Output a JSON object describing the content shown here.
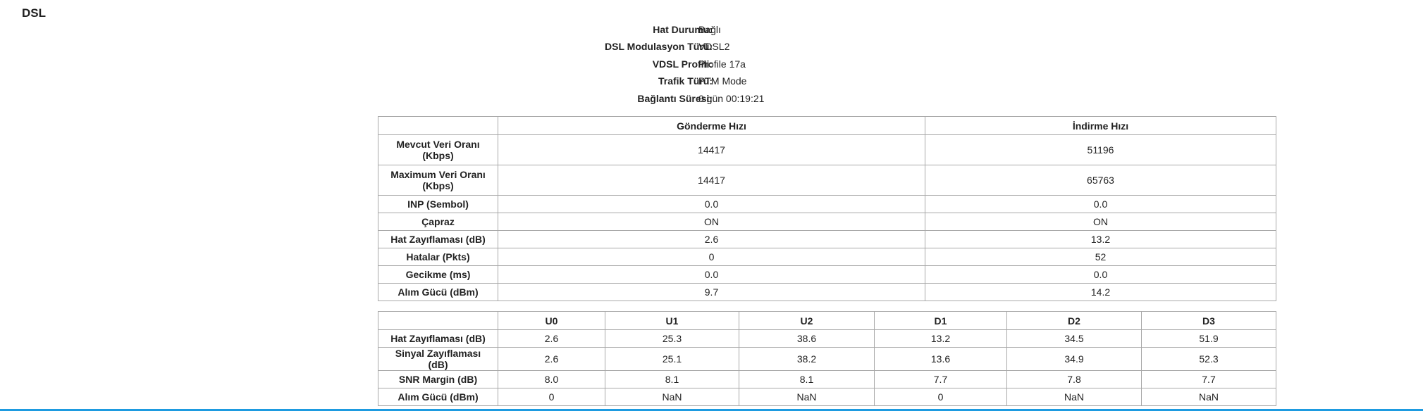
{
  "title": "DSL",
  "status": [
    {
      "label": "Hat Durumu:",
      "value": "Bağlı"
    },
    {
      "label": "DSL Modulasyon Türü:",
      "value": "VDSL2"
    },
    {
      "label": "VDSL Profili:",
      "value": "Profile 17a"
    },
    {
      "label": "Trafik Türü:",
      "value": "PTM Mode"
    },
    {
      "label": "Bağlantı Süresi:",
      "value": "0 gün 00:19:21"
    }
  ],
  "table1": {
    "header": [
      "Gönderme Hızı",
      "İndirme Hızı"
    ],
    "rows": [
      [
        "Mevcut Veri Oranı (Kbps)",
        "14417",
        "51196"
      ],
      [
        "Maximum Veri Oranı (Kbps)",
        "14417",
        "65763"
      ],
      [
        "INP (Sembol)",
        "0.0",
        "0.0"
      ],
      [
        "Çapraz",
        "ON",
        "ON"
      ],
      [
        "Hat Zayıflaması (dB)",
        "2.6",
        "13.2"
      ],
      [
        "Hatalar (Pkts)",
        "0",
        "52"
      ],
      [
        "Gecikme (ms)",
        "0.0",
        "0.0"
      ],
      [
        "Alım Gücü (dBm)",
        "9.7",
        "14.2"
      ]
    ]
  },
  "table2": {
    "header": [
      "U0",
      "U1",
      "U2",
      "D1",
      "D2",
      "D3"
    ],
    "rows": [
      [
        "Hat Zayıflaması (dB)",
        "2.6",
        "25.3",
        "38.6",
        "13.2",
        "34.5",
        "51.9"
      ],
      [
        "Sinyal Zayıflaması (dB)",
        "2.6",
        "25.1",
        "38.2",
        "13.6",
        "34.9",
        "52.3"
      ],
      [
        "SNR Margin (dB)",
        "8.0",
        "8.1",
        "8.1",
        "7.7",
        "7.8",
        "7.7"
      ],
      [
        "Alım Gücü (dBm)",
        "0",
        "NaN",
        "NaN",
        "0",
        "NaN",
        "NaN"
      ]
    ]
  }
}
